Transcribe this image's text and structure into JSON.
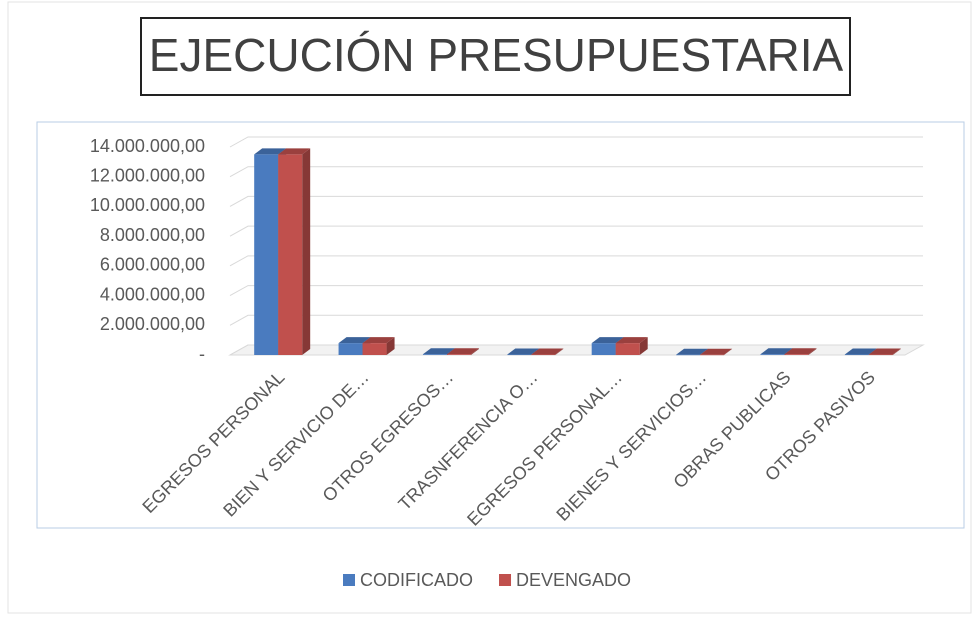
{
  "chart_data": {
    "type": "bar",
    "title": "EJECUCIÓN PRESUPUESTARIA",
    "categories": [
      "EGRESOS PERSONAL",
      "BIEN Y SERVICIO DE…",
      "OTROS EGRESOS…",
      "TRASNFERENCIA O…",
      "EGRESOS  PERSONAL…",
      "BIENES Y SERVICIOS…",
      "OBRAS PUBLICAS",
      "OTROS PASIVOS"
    ],
    "series": [
      {
        "name": "CODIFICADO",
        "color": "#4a7bbf",
        "values": [
          13500000,
          800000,
          50000,
          30000,
          800000,
          20000,
          50000,
          30000
        ]
      },
      {
        "name": "DEVENGADO",
        "color": "#c0504d",
        "values": [
          13500000,
          800000,
          50000,
          30000,
          800000,
          20000,
          50000,
          30000
        ]
      }
    ],
    "ylim": [
      0,
      14000000
    ],
    "yticks": [
      {
        "value": 0,
        "label": "-"
      },
      {
        "value": 2000000,
        "label": "2.000.000,00"
      },
      {
        "value": 4000000,
        "label": "4.000.000,00"
      },
      {
        "value": 6000000,
        "label": "6.000.000,00"
      },
      {
        "value": 8000000,
        "label": "8.000.000,00"
      },
      {
        "value": 10000000,
        "label": "10.000.000,00"
      },
      {
        "value": 12000000,
        "label": "12.000.000,00"
      },
      {
        "value": 14000000,
        "label": "14.000.000,00"
      }
    ],
    "grid": true,
    "legend": "bottom"
  }
}
